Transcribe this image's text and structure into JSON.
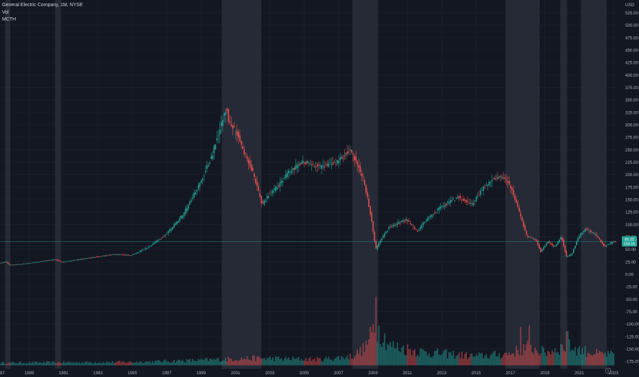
{
  "header": {
    "title": "General Electric Company, 1M, NYSE",
    "volume_label": "Vol",
    "indicator_label": "MCTH"
  },
  "colors": {
    "background": "#131722",
    "grid": "#1e222d",
    "up": "#26a69a",
    "down": "#ef5350",
    "shade": "#2a2e39",
    "text": "#d1d4dc",
    "axis_text": "#b2b5be",
    "price_label": "#26a69a",
    "price_line": "#26a69a"
  },
  "chart_data": {
    "type": "candlestick",
    "currency": "USD",
    "y_ticks": [
      "525.00",
      "500.00",
      "475.00",
      "450.00",
      "425.00",
      "400.00",
      "375.00",
      "350.00",
      "325.00",
      "300.00",
      "275.00",
      "250.00",
      "225.00",
      "200.00",
      "175.00",
      "150.00",
      "125.00",
      "100.00",
      "75.00",
      "50.00",
      "25.00",
      "0.00",
      "-25.00",
      "-50.00",
      "-75.00",
      "-100.00",
      "-125.00",
      "-150.00",
      "-175.00"
    ],
    "ylim": [
      -180,
      550
    ],
    "x_ticks": [
      "87",
      "1989",
      "1991",
      "1993",
      "1995",
      "1997",
      "1999",
      "2001",
      "2003",
      "2005",
      "2007",
      "2009",
      "2011",
      "2013",
      "2015",
      "2017",
      "2019",
      "2021",
      "2023"
    ],
    "xlim": [
      1987.3,
      2023.2
    ],
    "last_price": 65.22,
    "price_labels": [
      "65.22",
      "20d 1h"
    ],
    "shaded_periods": [
      [
        1987.6,
        1987.9
      ],
      [
        1990.5,
        1990.85
      ],
      [
        2000.2,
        2002.5
      ],
      [
        2007.8,
        2009.3
      ],
      [
        2016.7,
        2018.7
      ],
      [
        2019.9,
        2020.3
      ],
      [
        2021.1,
        2022.6
      ]
    ],
    "price_keypoints": [
      [
        1987.3,
        22
      ],
      [
        1987.7,
        25
      ],
      [
        1987.9,
        18
      ],
      [
        1989.0,
        22
      ],
      [
        1990.0,
        27
      ],
      [
        1990.6,
        30
      ],
      [
        1990.9,
        24
      ],
      [
        1992.0,
        30
      ],
      [
        1993.0,
        35
      ],
      [
        1994.0,
        40
      ],
      [
        1995.0,
        38
      ],
      [
        1996.0,
        55
      ],
      [
        1997.0,
        80
      ],
      [
        1998.0,
        120
      ],
      [
        1999.0,
        185
      ],
      [
        1999.6,
        230
      ],
      [
        2000.5,
        335
      ],
      [
        2000.7,
        300
      ],
      [
        2001.2,
        280
      ],
      [
        2001.6,
        240
      ],
      [
        2002.0,
        210
      ],
      [
        2002.6,
        140
      ],
      [
        2003.0,
        160
      ],
      [
        2003.6,
        180
      ],
      [
        2004.0,
        200
      ],
      [
        2004.5,
        215
      ],
      [
        2005.0,
        225
      ],
      [
        2006.0,
        215
      ],
      [
        2007.0,
        225
      ],
      [
        2007.7,
        250
      ],
      [
        2008.0,
        230
      ],
      [
        2008.5,
        190
      ],
      [
        2008.9,
        120
      ],
      [
        2009.2,
        50
      ],
      [
        2009.5,
        70
      ],
      [
        2010.0,
        95
      ],
      [
        2011.0,
        110
      ],
      [
        2011.6,
        85
      ],
      [
        2012.0,
        105
      ],
      [
        2013.0,
        135
      ],
      [
        2014.0,
        155
      ],
      [
        2014.8,
        140
      ],
      [
        2015.5,
        175
      ],
      [
        2016.0,
        190
      ],
      [
        2016.5,
        195
      ],
      [
        2017.0,
        180
      ],
      [
        2017.6,
        120
      ],
      [
        2018.0,
        75
      ],
      [
        2018.5,
        70
      ],
      [
        2018.8,
        45
      ],
      [
        2019.2,
        65
      ],
      [
        2019.6,
        55
      ],
      [
        2020.0,
        75
      ],
      [
        2020.3,
        35
      ],
      [
        2020.6,
        40
      ],
      [
        2021.0,
        75
      ],
      [
        2021.4,
        90
      ],
      [
        2022.0,
        80
      ],
      [
        2022.5,
        55
      ],
      [
        2023.0,
        65
      ]
    ],
    "volume_keypoints": [
      [
        1987.3,
        4
      ],
      [
        1995.0,
        5
      ],
      [
        1999.0,
        8
      ],
      [
        2002.0,
        11
      ],
      [
        2006.0,
        9
      ],
      [
        2007.8,
        14
      ],
      [
        2008.5,
        26
      ],
      [
        2009.2,
        60
      ],
      [
        2010.0,
        30
      ],
      [
        2012.0,
        20
      ],
      [
        2015.0,
        14
      ],
      [
        2017.0,
        18
      ],
      [
        2018.0,
        28
      ],
      [
        2019.0,
        20
      ],
      [
        2020.3,
        30
      ],
      [
        2021.0,
        24
      ],
      [
        2022.0,
        18
      ],
      [
        2023.0,
        16
      ]
    ],
    "volume_spikes": [
      [
        2009.2,
        100
      ],
      [
        2009.0,
        60
      ],
      [
        2017.6,
        56
      ],
      [
        2018.1,
        58
      ],
      [
        2020.3,
        50
      ]
    ]
  }
}
